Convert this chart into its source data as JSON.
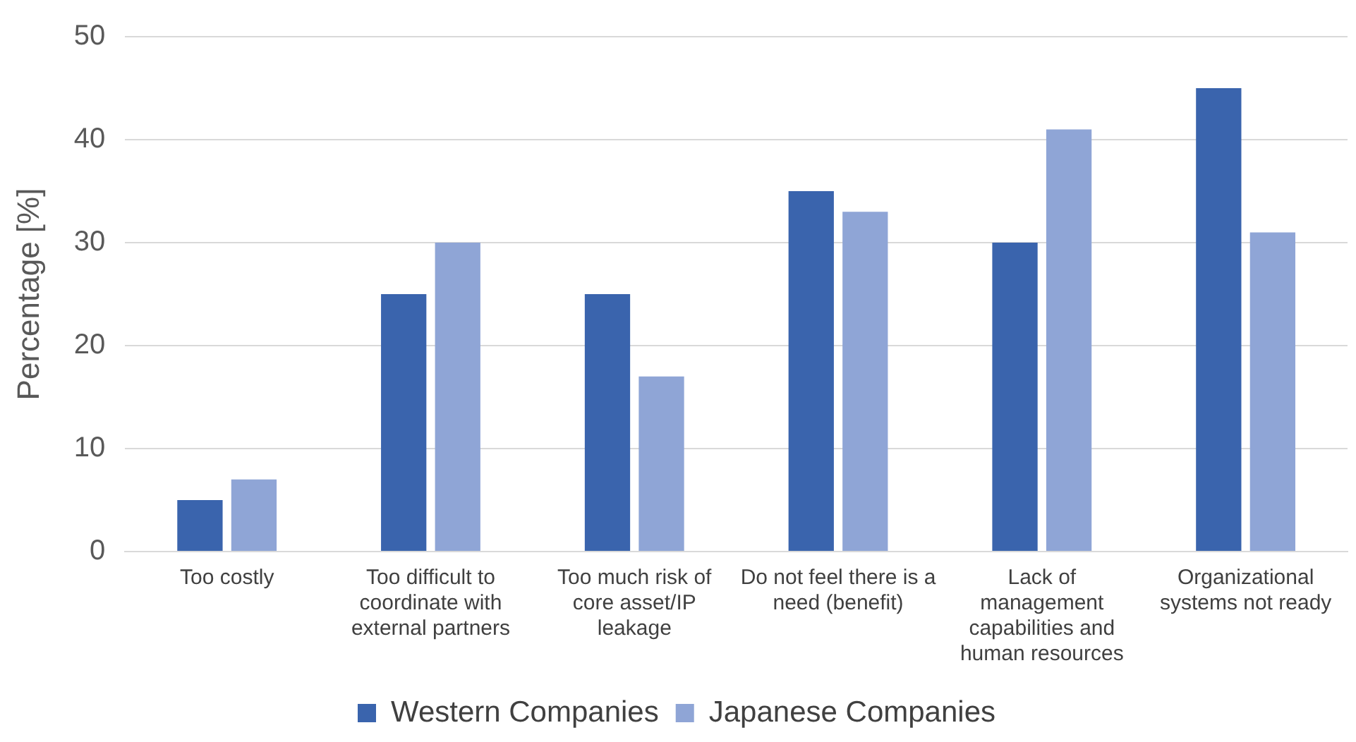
{
  "chart_data": {
    "type": "bar",
    "ylabel": "Percentage [%]",
    "categories": [
      "Too costly",
      "Too difficult to coordinate with external partners",
      "Too much risk of core asset/IP leakage",
      "Do not feel there is a need (benefit)",
      "Lack of management capabilities and human resources",
      "Organizational systems not ready"
    ],
    "series": [
      {
        "name": "Western Companies",
        "color": "#3a64ad",
        "values": [
          5,
          25,
          25,
          35,
          30,
          45
        ]
      },
      {
        "name": "Japanese Companies",
        "color": "#8fa5d6",
        "values": [
          7,
          30,
          17,
          33,
          41,
          31
        ]
      }
    ],
    "ylim": [
      0,
      50
    ],
    "yticks": [
      0,
      10,
      20,
      30,
      40,
      50
    ],
    "grid": "y",
    "legend": "bottom"
  }
}
